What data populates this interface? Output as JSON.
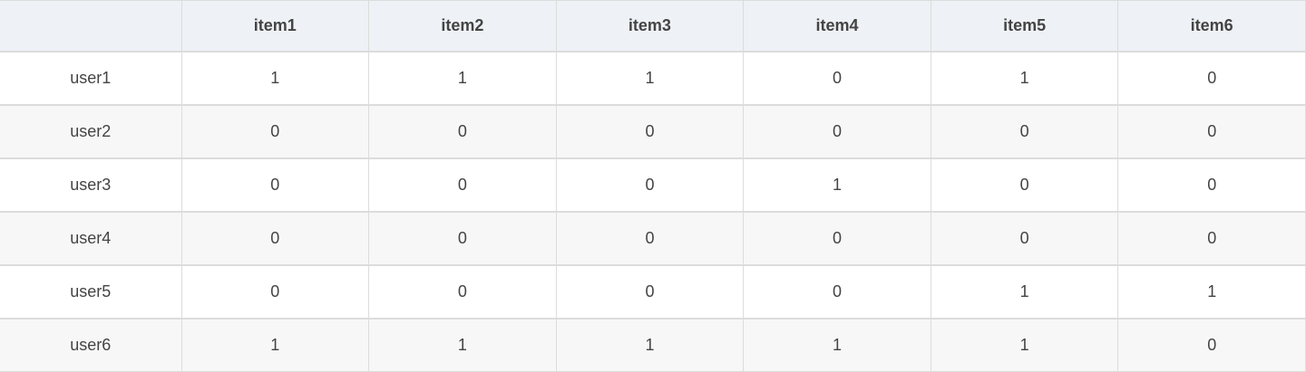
{
  "table": {
    "columns": [
      "",
      "item1",
      "item2",
      "item3",
      "item4",
      "item5",
      "item6"
    ],
    "rows": [
      {
        "label": "user1",
        "values": [
          "1",
          "1",
          "1",
          "0",
          "1",
          "0"
        ]
      },
      {
        "label": "user2",
        "values": [
          "0",
          "0",
          "0",
          "0",
          "0",
          "0"
        ]
      },
      {
        "label": "user3",
        "values": [
          "0",
          "0",
          "0",
          "1",
          "0",
          "0"
        ]
      },
      {
        "label": "user4",
        "values": [
          "0",
          "0",
          "0",
          "0",
          "0",
          "0"
        ]
      },
      {
        "label": "user5",
        "values": [
          "0",
          "0",
          "0",
          "0",
          "1",
          "1"
        ]
      },
      {
        "label": "user6",
        "values": [
          "1",
          "1",
          "1",
          "1",
          "1",
          "0"
        ]
      }
    ]
  }
}
